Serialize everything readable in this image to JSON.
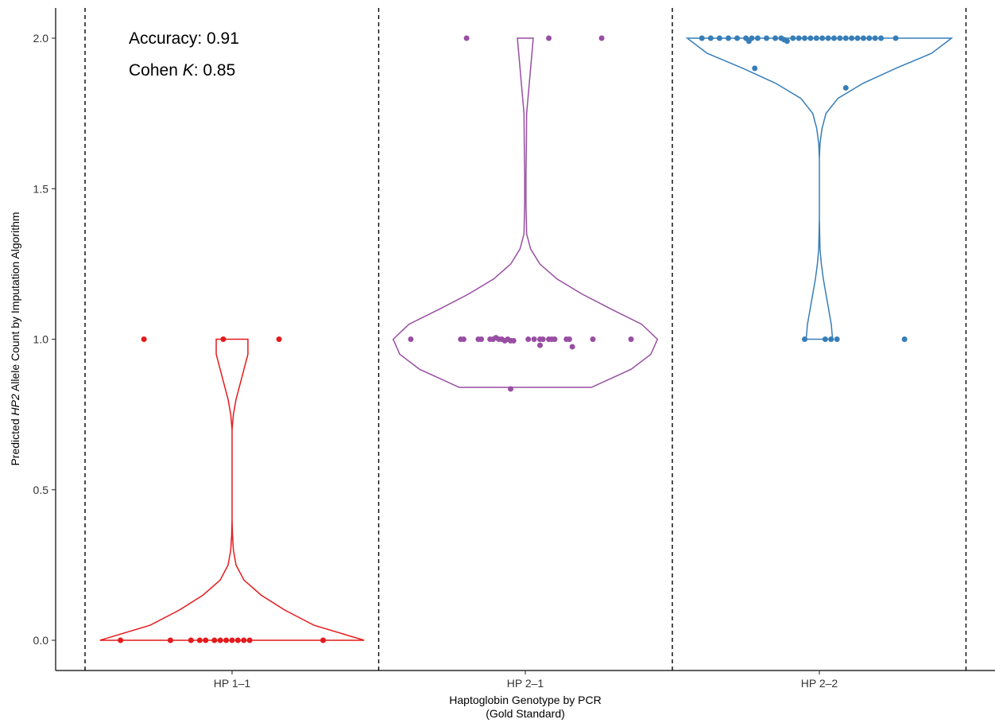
{
  "chart_data": {
    "type": "violin",
    "title": "",
    "xlabel_line1": "Haptoglobin Genotype by PCR",
    "xlabel_line2": "(Gold Standard)",
    "ylabel_prefix": "Predicted ",
    "ylabel_italic": "HP2",
    "ylabel_suffix": " Allele Count by Imputation Algorithm",
    "ylim": [
      -0.1,
      2.1
    ],
    "yticks": [
      "0.0",
      "0.5",
      "1.0",
      "1.5",
      "2.0"
    ],
    "ytick_values": [
      0,
      0.5,
      1,
      1.5,
      2
    ],
    "grid": false,
    "legend": "none",
    "categories": [
      "HP 1–1",
      "HP 2–1",
      "HP 2–2"
    ],
    "annotations": {
      "accuracy": "Accuracy: 0.91",
      "kappa_prefix": "Cohen ",
      "kappa_italic": "K",
      "kappa_suffix": ": 0.85"
    },
    "series": [
      {
        "category": "HP 1–1",
        "color": "#e41a1c",
        "range": [
          0,
          1
        ],
        "violin_profile": [
          [
            0.0,
            1.0
          ],
          [
            0.05,
            0.62
          ],
          [
            0.1,
            0.4
          ],
          [
            0.15,
            0.22
          ],
          [
            0.2,
            0.09
          ],
          [
            0.25,
            0.03
          ],
          [
            0.3,
            0.01
          ],
          [
            0.35,
            0.003
          ],
          [
            0.4,
            0.0
          ],
          [
            0.5,
            0.0
          ],
          [
            0.6,
            0.0
          ],
          [
            0.7,
            0.0
          ],
          [
            0.75,
            0.01
          ],
          [
            0.8,
            0.03
          ],
          [
            0.85,
            0.06
          ],
          [
            0.9,
            0.09
          ],
          [
            0.95,
            0.12
          ],
          [
            1.0,
            0.12
          ]
        ],
        "points": [
          {
            "y": 1.0,
            "dx": -0.3
          },
          {
            "y": 1.0,
            "dx": -0.03
          },
          {
            "y": 1.0,
            "dx": 0.16
          },
          {
            "y": 0.0,
            "dx": -0.38
          },
          {
            "y": 0.0,
            "dx": -0.21
          },
          {
            "y": 0.0,
            "dx": -0.14
          },
          {
            "y": 0.0,
            "dx": -0.11
          },
          {
            "y": 0.0,
            "dx": -0.09
          },
          {
            "y": 0.0,
            "dx": -0.06
          },
          {
            "y": 0.0,
            "dx": -0.04
          },
          {
            "y": 0.0,
            "dx": -0.02
          },
          {
            "y": 0.0,
            "dx": 0.0
          },
          {
            "y": 0.0,
            "dx": 0.02
          },
          {
            "y": 0.0,
            "dx": 0.04
          },
          {
            "y": 0.0,
            "dx": 0.06
          },
          {
            "y": 0.0,
            "dx": 0.31
          }
        ]
      },
      {
        "category": "HP 2–1",
        "color": "#984ea3",
        "range": [
          0.84,
          2
        ],
        "violin_profile": [
          [
            0.84,
            0.5
          ],
          [
            0.9,
            0.8
          ],
          [
            0.95,
            0.95
          ],
          [
            1.0,
            1.0
          ],
          [
            1.05,
            0.88
          ],
          [
            1.1,
            0.65
          ],
          [
            1.15,
            0.43
          ],
          [
            1.2,
            0.24
          ],
          [
            1.25,
            0.11
          ],
          [
            1.3,
            0.04
          ],
          [
            1.35,
            0.01
          ],
          [
            1.45,
            0.005
          ],
          [
            1.55,
            0.005
          ],
          [
            1.65,
            0.008
          ],
          [
            1.75,
            0.01
          ],
          [
            1.8,
            0.02
          ],
          [
            1.85,
            0.03
          ],
          [
            1.9,
            0.04
          ],
          [
            1.95,
            0.05
          ],
          [
            2.0,
            0.06
          ]
        ],
        "points": [
          {
            "y": 2.0,
            "dx": -0.2
          },
          {
            "y": 2.0,
            "dx": 0.08
          },
          {
            "y": 2.0,
            "dx": 0.26
          },
          {
            "y": 1.0,
            "dx": -0.39
          },
          {
            "y": 1.0,
            "dx": -0.22
          },
          {
            "y": 1.0,
            "dx": -0.21
          },
          {
            "y": 1.0,
            "dx": -0.16
          },
          {
            "y": 1.0,
            "dx": -0.15
          },
          {
            "y": 1.0,
            "dx": -0.12
          },
          {
            "y": 1.0,
            "dx": -0.11
          },
          {
            "y": 1.005,
            "dx": -0.1
          },
          {
            "y": 1.0,
            "dx": -0.09
          },
          {
            "y": 1.0,
            "dx": -0.08
          },
          {
            "y": 0.995,
            "dx": -0.07
          },
          {
            "y": 1.0,
            "dx": -0.06
          },
          {
            "y": 0.995,
            "dx": -0.05
          },
          {
            "y": 0.995,
            "dx": -0.04
          },
          {
            "y": 1.0,
            "dx": 0.01
          },
          {
            "y": 1.0,
            "dx": 0.03
          },
          {
            "y": 1.0,
            "dx": 0.05
          },
          {
            "y": 0.98,
            "dx": 0.05
          },
          {
            "y": 1.0,
            "dx": 0.06
          },
          {
            "y": 1.0,
            "dx": 0.08
          },
          {
            "y": 1.0,
            "dx": 0.09
          },
          {
            "y": 1.0,
            "dx": 0.1
          },
          {
            "y": 1.0,
            "dx": 0.14
          },
          {
            "y": 1.0,
            "dx": 0.15
          },
          {
            "y": 0.975,
            "dx": 0.16
          },
          {
            "y": 1.0,
            "dx": 0.23
          },
          {
            "y": 1.0,
            "dx": 0.36
          },
          {
            "y": 0.835,
            "dx": -0.05
          }
        ]
      },
      {
        "category": "HP 2–2",
        "color": "#377eb8",
        "range": [
          1,
          2
        ],
        "violin_profile": [
          [
            1.0,
            0.1
          ],
          [
            1.05,
            0.09
          ],
          [
            1.1,
            0.07
          ],
          [
            1.15,
            0.05
          ],
          [
            1.2,
            0.03
          ],
          [
            1.25,
            0.015
          ],
          [
            1.3,
            0.005
          ],
          [
            1.4,
            0.0
          ],
          [
            1.5,
            0.0
          ],
          [
            1.6,
            0.0
          ],
          [
            1.65,
            0.005
          ],
          [
            1.7,
            0.02
          ],
          [
            1.75,
            0.05
          ],
          [
            1.8,
            0.14
          ],
          [
            1.85,
            0.33
          ],
          [
            1.9,
            0.58
          ],
          [
            1.95,
            0.85
          ],
          [
            2.0,
            1.0
          ]
        ],
        "points": [
          {
            "y": 2.0,
            "dx": -0.4
          },
          {
            "y": 2.0,
            "dx": -0.37
          },
          {
            "y": 2.0,
            "dx": -0.34
          },
          {
            "y": 2.0,
            "dx": -0.31
          },
          {
            "y": 2.0,
            "dx": -0.28
          },
          {
            "y": 2.0,
            "dx": -0.25
          },
          {
            "y": 2.0,
            "dx": -0.23
          },
          {
            "y": 1.99,
            "dx": -0.24
          },
          {
            "y": 2.0,
            "dx": -0.21
          },
          {
            "y": 2.0,
            "dx": -0.18
          },
          {
            "y": 2.0,
            "dx": -0.15
          },
          {
            "y": 2.0,
            "dx": -0.13
          },
          {
            "y": 1.995,
            "dx": -0.12
          },
          {
            "y": 1.99,
            "dx": -0.11
          },
          {
            "y": 2.0,
            "dx": -0.09
          },
          {
            "y": 2.0,
            "dx": -0.07
          },
          {
            "y": 2.0,
            "dx": -0.05
          },
          {
            "y": 2.0,
            "dx": -0.03
          },
          {
            "y": 2.0,
            "dx": -0.01
          },
          {
            "y": 2.0,
            "dx": 0.01
          },
          {
            "y": 2.0,
            "dx": 0.03
          },
          {
            "y": 2.0,
            "dx": 0.05
          },
          {
            "y": 2.0,
            "dx": 0.07
          },
          {
            "y": 2.0,
            "dx": 0.09
          },
          {
            "y": 2.0,
            "dx": 0.11
          },
          {
            "y": 2.0,
            "dx": 0.13
          },
          {
            "y": 2.0,
            "dx": 0.15
          },
          {
            "y": 2.0,
            "dx": 0.17
          },
          {
            "y": 2.0,
            "dx": 0.19
          },
          {
            "y": 2.0,
            "dx": 0.21
          },
          {
            "y": 2.0,
            "dx": 0.26
          },
          {
            "y": 1.9,
            "dx": -0.22
          },
          {
            "y": 1.835,
            "dx": 0.09
          },
          {
            "y": 1.0,
            "dx": -0.05
          },
          {
            "y": 1.0,
            "dx": 0.02
          },
          {
            "y": 1.0,
            "dx": 0.04
          },
          {
            "y": 1.0,
            "dx": 0.06
          },
          {
            "y": 1.0,
            "dx": 0.29
          }
        ]
      }
    ]
  }
}
